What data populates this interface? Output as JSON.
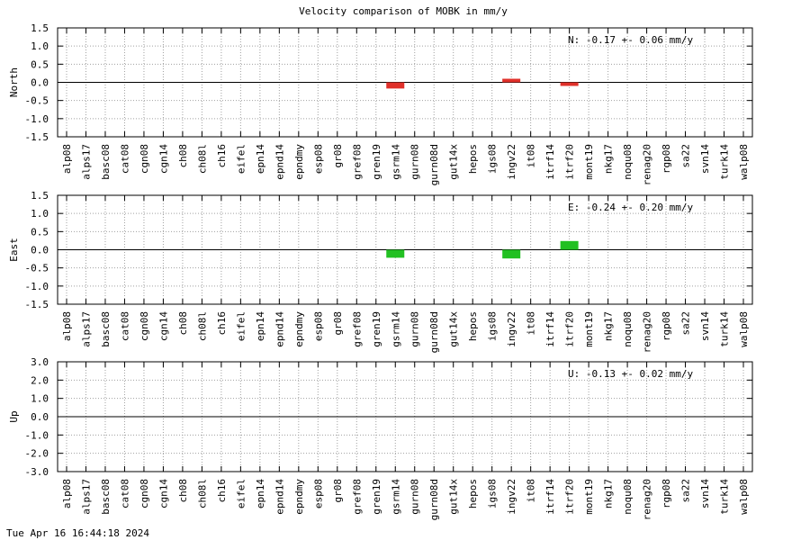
{
  "chart_data": {
    "type": "bar",
    "title": "Velocity comparison of MOBK in mm/y",
    "categories": [
      "alp08",
      "alps17",
      "basc08",
      "cat08",
      "cgn08",
      "cgn14",
      "ch08",
      "ch08l",
      "ch16",
      "eifel",
      "epn14",
      "epnd14",
      "epndmy",
      "esp08",
      "gr08",
      "gref08",
      "gren19",
      "gsrm14",
      "gurn08",
      "gurn08d",
      "gut14x",
      "hepos",
      "igs08",
      "ingv22",
      "it08",
      "itrf14",
      "itrf20",
      "mont19",
      "nkg17",
      "noqu08",
      "renag20",
      "rgp08",
      "sa22",
      "svn14",
      "turk14",
      "walp08"
    ],
    "panels": [
      {
        "ylabel": "North",
        "ylim": [
          -1.5,
          1.5
        ],
        "yticks": [
          "1.5",
          "1.0",
          "0.5",
          "0.0",
          "-0.5",
          "-1.0",
          "-1.5"
        ],
        "annotation": "N:  -0.17 +-  0.06 mm/y",
        "color": "#e0302a",
        "bars": [
          {
            "category": "gsrm14",
            "value": -0.17
          },
          {
            "category": "ingv22",
            "value": 0.04
          },
          {
            "category": "itrf20",
            "value": -0.07
          }
        ]
      },
      {
        "ylabel": "East",
        "ylim": [
          -1.5,
          1.5
        ],
        "yticks": [
          "1.5",
          "1.0",
          "0.5",
          "0.0",
          "-0.5",
          "-1.0",
          "-1.5"
        ],
        "annotation": "E:  -0.24 +-  0.20 mm/y",
        "color": "#22c022",
        "bars": [
          {
            "category": "gsrm14",
            "value": -0.22
          },
          {
            "category": "ingv22",
            "value": -0.24
          },
          {
            "category": "itrf20",
            "value": 0.24
          }
        ]
      },
      {
        "ylabel": "Up",
        "ylim": [
          -3.0,
          3.0
        ],
        "yticks": [
          "3.0",
          "2.0",
          "1.0",
          "0.0",
          "-1.0",
          "-2.0",
          "-3.0"
        ],
        "annotation": "U:  -0.13 +-  0.02 mm/y",
        "color": "#1f4fd0",
        "bars": []
      }
    ],
    "grid": true,
    "legend": "none"
  },
  "footer": "Tue Apr 16 16:44:18 2024"
}
